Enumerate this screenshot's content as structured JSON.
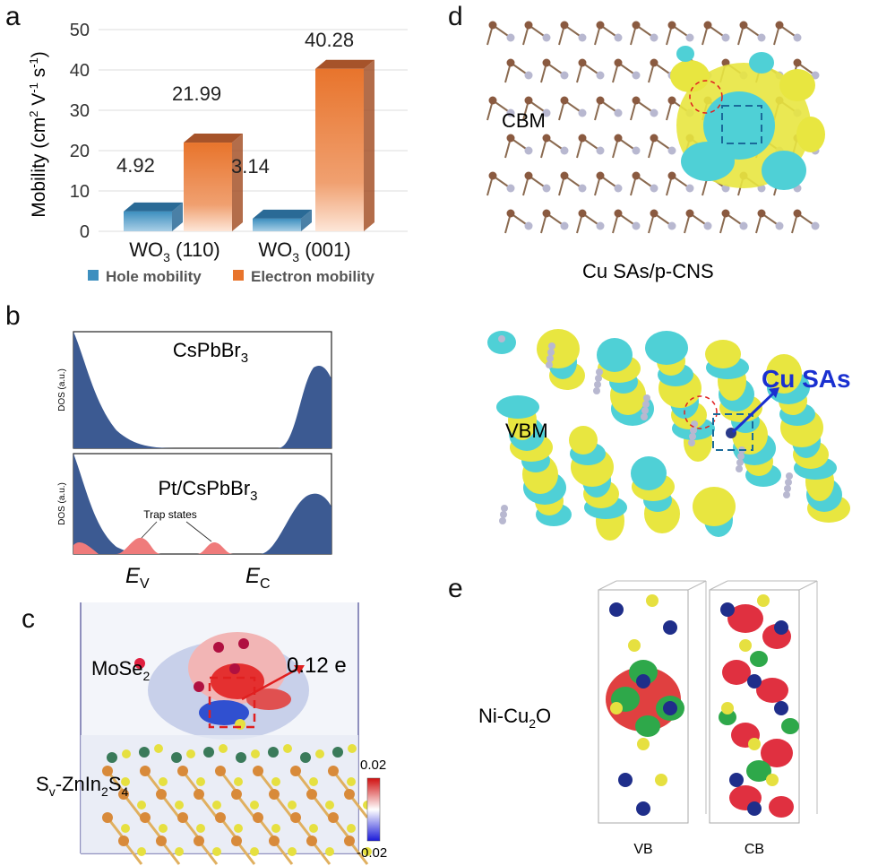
{
  "panels": {
    "a": {
      "letter": "a",
      "chart_data": {
        "type": "bar",
        "categories": [
          "WO3 (110)",
          "WO3 (001)"
        ],
        "category_base": "WO",
        "category_sub": "3",
        "category_suffix": [
          " (110)",
          " (001)"
        ],
        "series": [
          {
            "name": "Hole mobility",
            "values": [
              4.92,
              3.14
            ],
            "color": "#3d8fbf"
          },
          {
            "name": "Electron mobility",
            "values": [
              21.99,
              40.28
            ],
            "color": "#e8742c"
          }
        ],
        "value_labels": [
          "4.92",
          "21.99",
          "3.14",
          "40.28"
        ],
        "ylabel": "Mobility (cm2 V-1 s-1)",
        "ylabel_parts": [
          "Mobility (cm",
          "2",
          " V",
          "-1",
          " s",
          "-1",
          ")"
        ],
        "ylim": [
          0,
          50
        ],
        "yticks": [
          "0",
          "10",
          "20",
          "30",
          "40",
          "50"
        ],
        "grid": true,
        "legend_position": "bottom"
      }
    },
    "b": {
      "letter": "b",
      "top": {
        "title": "CsPbBr3",
        "title_base": "CsPbBr",
        "title_sub": "3",
        "ylabel": "DOS (a.u.)",
        "ev": "E",
        "ev_sub": "v",
        "ec": "E",
        "ec_sub": "c"
      },
      "bottom": {
        "title": "Pt/CsPbBr3",
        "title_base": "Pt/CsPbBr",
        "title_sub": "3",
        "ylabel": "DOS (a.u.)",
        "trap": "Trap states",
        "ev": "E",
        "ev_sub": "V",
        "ec": "E",
        "ec_sub": "C"
      }
    },
    "c": {
      "letter": "c",
      "mose2": "MoSe",
      "mose2_sub": "2",
      "charge": "0.12 e",
      "sv_prefix": "S",
      "sv_sub": "v",
      "sv_mid": "-ZnIn",
      "sv_sub2": "2",
      "sv_s": "S",
      "sv_sub3": "4",
      "scale_max": "0.02",
      "scale_min": "-0.02"
    },
    "d": {
      "letter": "d",
      "cbm": "CBM",
      "vbm": "VBM",
      "caption": "Cu SAs/p-CNS",
      "cu_label": "Cu SAs"
    },
    "e": {
      "letter": "e",
      "name_base": "Ni-Cu",
      "name_sub": "2",
      "name_suffix": "O",
      "vb": "VB",
      "cb": "CB"
    }
  },
  "colors": {
    "hole": "#3d8fbf",
    "electron": "#e8742c",
    "dos": "#3c5a92",
    "trap": "#ef7b7b",
    "yellow": "#e8e640",
    "cyan": "#4fd0d6"
  }
}
